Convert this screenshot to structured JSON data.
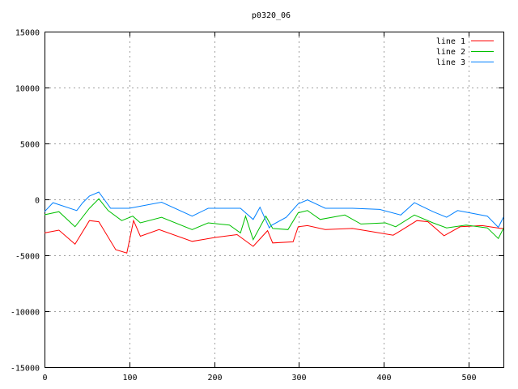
{
  "chart_data": {
    "type": "line",
    "title": "p0320_06",
    "xlabel": "",
    "ylabel": "",
    "xlim": [
      0,
      541
    ],
    "ylim": [
      -15000,
      15000
    ],
    "xticks": [
      0,
      100,
      200,
      300,
      400,
      500
    ],
    "yticks": [
      -15000,
      -10000,
      -5000,
      0,
      5000,
      10000,
      15000
    ],
    "grid": true,
    "legend_position": "top-right",
    "series": [
      {
        "name": "line 1",
        "color": "#ff0000",
        "x": [
          0,
          17,
          36,
          53,
          64,
          84,
          97,
          105,
          113,
          135,
          174,
          202,
          227,
          246,
          263,
          269,
          293,
          299,
          310,
          331,
          363,
          379,
          411,
          420,
          439,
          452,
          471,
          490,
          516,
          538,
          541
        ],
        "y": [
          -3000,
          -2750,
          -4000,
          -1900,
          -2000,
          -4500,
          -4800,
          -1900,
          -3300,
          -2700,
          -3750,
          -3400,
          -3150,
          -4200,
          -2800,
          -3900,
          -3800,
          -2450,
          -2350,
          -2700,
          -2600,
          -2800,
          -3200,
          -2800,
          -1900,
          -2000,
          -3250,
          -2450,
          -2350,
          -2600,
          -2600
        ]
      },
      {
        "name": "line 2",
        "color": "#00c000",
        "x": [
          0,
          17,
          36,
          53,
          64,
          75,
          91,
          104,
          113,
          138,
          174,
          193,
          218,
          231,
          237,
          246,
          261,
          269,
          287,
          299,
          310,
          325,
          354,
          373,
          402,
          414,
          436,
          458,
          474,
          497,
          522,
          535,
          541
        ],
        "y": [
          -1380,
          -1100,
          -2450,
          -800,
          50,
          -1000,
          -1900,
          -1500,
          -2100,
          -1600,
          -2700,
          -2100,
          -2300,
          -3000,
          -1500,
          -3600,
          -1500,
          -2600,
          -2700,
          -1200,
          -1000,
          -1800,
          -1400,
          -2200,
          -2100,
          -2450,
          -1400,
          -2100,
          -2550,
          -2300,
          -2550,
          -3500,
          -2600
        ]
      },
      {
        "name": "line 3",
        "color": "#0080ff",
        "x": [
          0,
          10,
          38,
          45,
          53,
          64,
          78,
          100,
          138,
          174,
          193,
          231,
          246,
          254,
          265,
          267,
          285,
          299,
          310,
          331,
          363,
          395,
          420,
          436,
          458,
          474,
          487,
          522,
          535,
          541
        ],
        "y": [
          -1100,
          -300,
          -1000,
          -300,
          300,
          650,
          -800,
          -800,
          -250,
          -1500,
          -800,
          -800,
          -1800,
          -700,
          -2550,
          -2350,
          -1600,
          -400,
          -50,
          -800,
          -800,
          -900,
          -1400,
          -300,
          -1100,
          -1600,
          -1000,
          -1500,
          -2500,
          -1600
        ]
      }
    ]
  }
}
